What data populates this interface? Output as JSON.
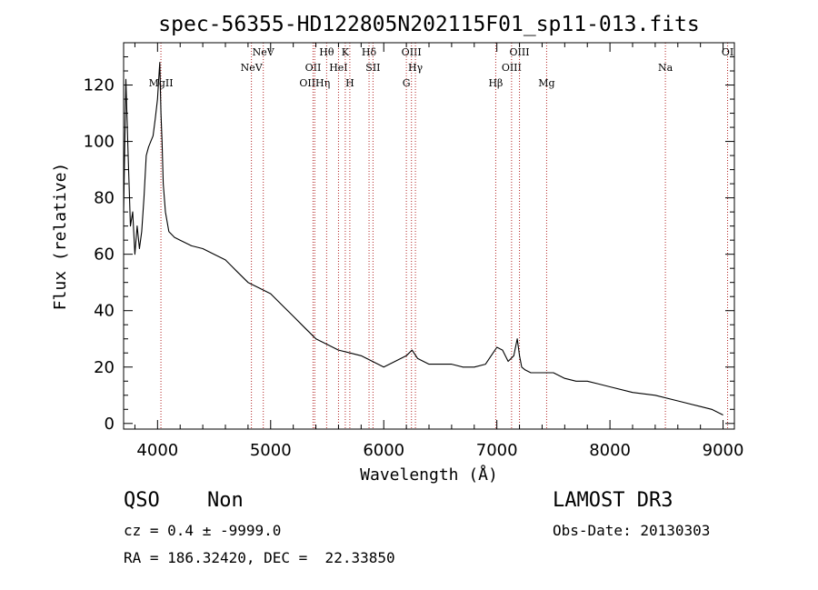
{
  "chart_data": {
    "type": "line",
    "title": "spec-56355-HD122805N202115F01_sp11-013.fits",
    "xlabel": "Wavelength (Å)",
    "ylabel": "Flux (relative)",
    "xlim": [
      3700,
      9100
    ],
    "ylim": [
      -2,
      135
    ],
    "xticks": [
      4000,
      5000,
      6000,
      7000,
      8000,
      9000
    ],
    "yticks": [
      0,
      20,
      40,
      60,
      80,
      100,
      120
    ],
    "x": [
      3700,
      3720,
      3740,
      3760,
      3780,
      3800,
      3820,
      3840,
      3860,
      3880,
      3900,
      3920,
      3940,
      3960,
      3980,
      4000,
      4010,
      4020,
      4030,
      4040,
      4050,
      4070,
      4100,
      4150,
      4200,
      4300,
      4400,
      4500,
      4600,
      4700,
      4800,
      4900,
      5000,
      5100,
      5200,
      5300,
      5400,
      5500,
      5600,
      5700,
      5800,
      5900,
      6000,
      6100,
      6200,
      6250,
      6300,
      6400,
      6500,
      6600,
      6700,
      6800,
      6900,
      6950,
      7000,
      7050,
      7100,
      7150,
      7180,
      7200,
      7220,
      7250,
      7300,
      7400,
      7500,
      7600,
      7700,
      7800,
      7900,
      8000,
      8200,
      8400,
      8600,
      8800,
      8900,
      9000
    ],
    "values": [
      75,
      122,
      95,
      70,
      75,
      60,
      70,
      62,
      68,
      80,
      95,
      98,
      100,
      102,
      108,
      115,
      122,
      128,
      110,
      100,
      85,
      75,
      68,
      66,
      65,
      63,
      62,
      60,
      58,
      54,
      50,
      48,
      46,
      42,
      38,
      34,
      30,
      28,
      26,
      25,
      24,
      22,
      20,
      22,
      24,
      26,
      23,
      21,
      21,
      21,
      20,
      20,
      21,
      24,
      27,
      26,
      22,
      24,
      30,
      24,
      20,
      19,
      18,
      18,
      18,
      16,
      15,
      15,
      14,
      13,
      11,
      10,
      8,
      6,
      5,
      3
    ],
    "lines": [
      {
        "label": "MgII",
        "wavelength": 4030,
        "row": 3
      },
      {
        "label": "NeV",
        "wavelength": 4830,
        "row": 2
      },
      {
        "label": "NeV",
        "wavelength": 4935,
        "row": 1
      },
      {
        "label": "OII",
        "wavelength": 5375,
        "row": 2
      },
      {
        "label": "OIIHη",
        "wavelength": 5390,
        "row": 3
      },
      {
        "label": "Hθ",
        "wavelength": 5495,
        "row": 1
      },
      {
        "label": "HeI",
        "wavelength": 5600,
        "row": 2
      },
      {
        "label": "K",
        "wavelength": 5660,
        "row": 1
      },
      {
        "label": "H",
        "wavelength": 5700,
        "row": 3
      },
      {
        "label": "Hδ",
        "wavelength": 5870,
        "row": 1
      },
      {
        "label": "SII",
        "wavelength": 5905,
        "row": 2
      },
      {
        "label": "G",
        "wavelength": 6200,
        "row": 3
      },
      {
        "label": "OIII",
        "wavelength": 6245,
        "row": 1
      },
      {
        "label": "Hγ",
        "wavelength": 6280,
        "row": 2
      },
      {
        "label": "Hβ",
        "wavelength": 6990,
        "row": 3
      },
      {
        "label": "OIII",
        "wavelength": 7130,
        "row": 2
      },
      {
        "label": "OIII",
        "wavelength": 7200,
        "row": 1
      },
      {
        "label": "Mg",
        "wavelength": 7440,
        "row": 3
      },
      {
        "label": "Na",
        "wavelength": 8490,
        "row": 2
      },
      {
        "label": "OI",
        "wavelength": 9040,
        "row": 1
      }
    ]
  },
  "info": {
    "class": "QSO",
    "subclass": "Non",
    "survey": "LAMOST DR3",
    "cz": "cz = 0.4 ± -9999.0",
    "obs_date": "Obs-Date: 20130303",
    "coords": "RA = 186.32420, DEC =  22.33850"
  },
  "colors": {
    "spectrum": "#000000",
    "line_marker": "#b22222",
    "axes": "#000000"
  }
}
